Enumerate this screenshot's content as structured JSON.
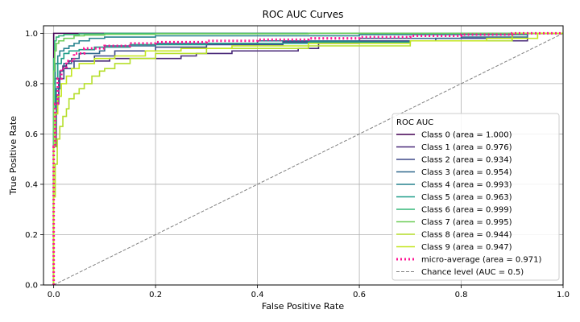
{
  "chart_data": {
    "type": "line",
    "title": "ROC AUC Curves",
    "xlabel": "False Positive Rate",
    "ylabel": "True Positive Rate",
    "xlim": [
      -0.02,
      1.0
    ],
    "ylim": [
      0.0,
      1.03
    ],
    "grid": true,
    "xticks": [
      0.0,
      0.2,
      0.4,
      0.6,
      0.8,
      1.0
    ],
    "yticks": [
      0.0,
      0.2,
      0.4,
      0.6,
      0.8,
      1.0
    ],
    "xtick_labels": [
      "0.0",
      "0.2",
      "0.4",
      "0.6",
      "0.8",
      "1.0"
    ],
    "ytick_labels": [
      "0.0",
      "0.2",
      "0.4",
      "0.6",
      "0.8",
      "1.0"
    ],
    "legend": {
      "title": "ROC AUC",
      "placement": "lower-right"
    },
    "series": [
      {
        "name": "Class 0 (area = 1.000)",
        "color": "#440154",
        "style": "solid",
        "x": [
          0,
          0,
          0.003,
          0.07,
          1.0
        ],
        "y": [
          0,
          0.98,
          1.0,
          1.0,
          1.0
        ]
      },
      {
        "name": "Class 1 (area = 0.976)",
        "color": "#482878",
        "style": "solid",
        "x": [
          0,
          0.005,
          0.01,
          0.013,
          0.018,
          0.025,
          0.03,
          0.04,
          0.06,
          0.09,
          0.11,
          0.12,
          0.13,
          0.21,
          0.25,
          0.28,
          0.35,
          0.48,
          0.52,
          0.6,
          0.93,
          0.93,
          1.0
        ],
        "y": [
          0,
          0.6,
          0.75,
          0.82,
          0.85,
          0.87,
          0.88,
          0.89,
          0.89,
          0.89,
          0.89,
          0.9,
          0.9,
          0.9,
          0.9,
          0.91,
          0.92,
          0.93,
          0.94,
          0.96,
          0.97,
          0.99,
          1.0
        ]
      },
      {
        "name": "Class 2 (area = 0.934)",
        "color": "#3e4989",
        "style": "solid",
        "x": [
          0,
          0.005,
          0.01,
          0.02,
          0.04,
          0.08,
          0.12,
          0.2,
          0.3,
          0.45,
          0.6,
          0.75,
          0.9,
          1.0
        ],
        "y": [
          0,
          0.55,
          0.72,
          0.82,
          0.86,
          0.89,
          0.91,
          0.93,
          0.945,
          0.955,
          0.965,
          0.97,
          0.98,
          1.0
        ]
      },
      {
        "name": "Class 3 (area = 0.954)",
        "color": "#31688e",
        "style": "solid",
        "x": [
          0,
          0.005,
          0.012,
          0.02,
          0.035,
          0.05,
          0.09,
          0.1,
          0.2,
          0.4,
          0.6,
          0.8,
          0.93,
          1.0
        ],
        "y": [
          0,
          0.62,
          0.78,
          0.85,
          0.88,
          0.9,
          0.92,
          0.93,
          0.95,
          0.96,
          0.97,
          0.98,
          0.985,
          1.0
        ]
      },
      {
        "name": "Class 4 (area = 0.993)",
        "color": "#26828e",
        "style": "solid",
        "x": [
          0,
          0.003,
          0.008,
          0.012,
          0.02,
          0.03,
          0.04,
          0.05,
          0.07,
          0.1,
          0.2,
          0.4,
          0.6,
          0.93,
          1.0
        ],
        "y": [
          0,
          0.8,
          0.88,
          0.91,
          0.93,
          0.94,
          0.95,
          0.96,
          0.97,
          0.98,
          0.985,
          0.99,
          0.99,
          0.995,
          1.0
        ]
      },
      {
        "name": "Class 5 (area = 0.963)",
        "color": "#1f9e89",
        "style": "solid",
        "x": [
          0,
          0.003,
          0.008,
          0.015,
          0.02,
          0.03,
          0.05,
          0.08,
          0.15,
          0.3,
          0.5,
          0.7,
          0.9,
          1.0
        ],
        "y": [
          0,
          0.7,
          0.82,
          0.88,
          0.9,
          0.92,
          0.93,
          0.935,
          0.945,
          0.955,
          0.96,
          0.965,
          0.97,
          1.0
        ]
      },
      {
        "name": "Class 6 (area = 0.999)",
        "color": "#35b779",
        "style": "solid",
        "x": [
          0,
          0.002,
          0.005,
          0.01,
          0.02,
          0.05,
          0.1,
          0.22,
          0.5,
          1.0
        ],
        "y": [
          0,
          0.9,
          0.97,
          0.985,
          0.99,
          0.995,
          0.998,
          1.0,
          1.0,
          1.0
        ]
      },
      {
        "name": "Class 7 (area = 0.995)",
        "color": "#6ece58",
        "style": "solid",
        "x": [
          0,
          0.002,
          0.005,
          0.01,
          0.02,
          0.04,
          0.06,
          0.1,
          0.2,
          0.5,
          1.0
        ],
        "y": [
          0,
          0.85,
          0.93,
          0.96,
          0.97,
          0.98,
          0.99,
          0.993,
          0.996,
          0.998,
          1.0
        ]
      },
      {
        "name": "Class 8 (area = 0.944)",
        "color": "#b5de2b",
        "style": "solid",
        "x": [
          0,
          0.003,
          0.007,
          0.012,
          0.018,
          0.025,
          0.03,
          0.04,
          0.05,
          0.06,
          0.075,
          0.09,
          0.1,
          0.12,
          0.15,
          0.2,
          0.3,
          0.5,
          0.7,
          0.9,
          1.0
        ],
        "y": [
          0,
          0.35,
          0.48,
          0.58,
          0.63,
          0.67,
          0.7,
          0.74,
          0.76,
          0.78,
          0.8,
          0.83,
          0.85,
          0.86,
          0.88,
          0.9,
          0.92,
          0.94,
          0.95,
          0.97,
          1.0
        ]
      },
      {
        "name": "Class 9 (area = 0.947)",
        "color": "#c3e61e",
        "style": "solid",
        "x": [
          0,
          0.003,
          0.008,
          0.015,
          0.025,
          0.035,
          0.05,
          0.08,
          0.12,
          0.18,
          0.25,
          0.35,
          0.5,
          0.7,
          0.85,
          0.95,
          1.0
        ],
        "y": [
          0,
          0.55,
          0.68,
          0.75,
          0.8,
          0.83,
          0.86,
          0.88,
          0.9,
          0.91,
          0.93,
          0.94,
          0.95,
          0.96,
          0.97,
          0.98,
          1.0
        ]
      },
      {
        "name": "micro-average (area = 0.971)",
        "color": "#ff1493",
        "style": "dotted",
        "x": [
          0,
          0.003,
          0.008,
          0.015,
          0.025,
          0.04,
          0.06,
          0.1,
          0.15,
          0.2,
          0.3,
          0.4,
          0.5,
          0.6,
          0.7,
          0.8,
          0.9,
          1.0
        ],
        "y": [
          0,
          0.55,
          0.72,
          0.82,
          0.86,
          0.89,
          0.92,
          0.94,
          0.95,
          0.96,
          0.965,
          0.97,
          0.975,
          0.98,
          0.985,
          0.99,
          0.995,
          1.0
        ]
      },
      {
        "name": "Chance level (AUC = 0.5)",
        "color": "#808080",
        "style": "dashed",
        "x": [
          0,
          1.0
        ],
        "y": [
          0,
          1.0
        ]
      }
    ]
  }
}
